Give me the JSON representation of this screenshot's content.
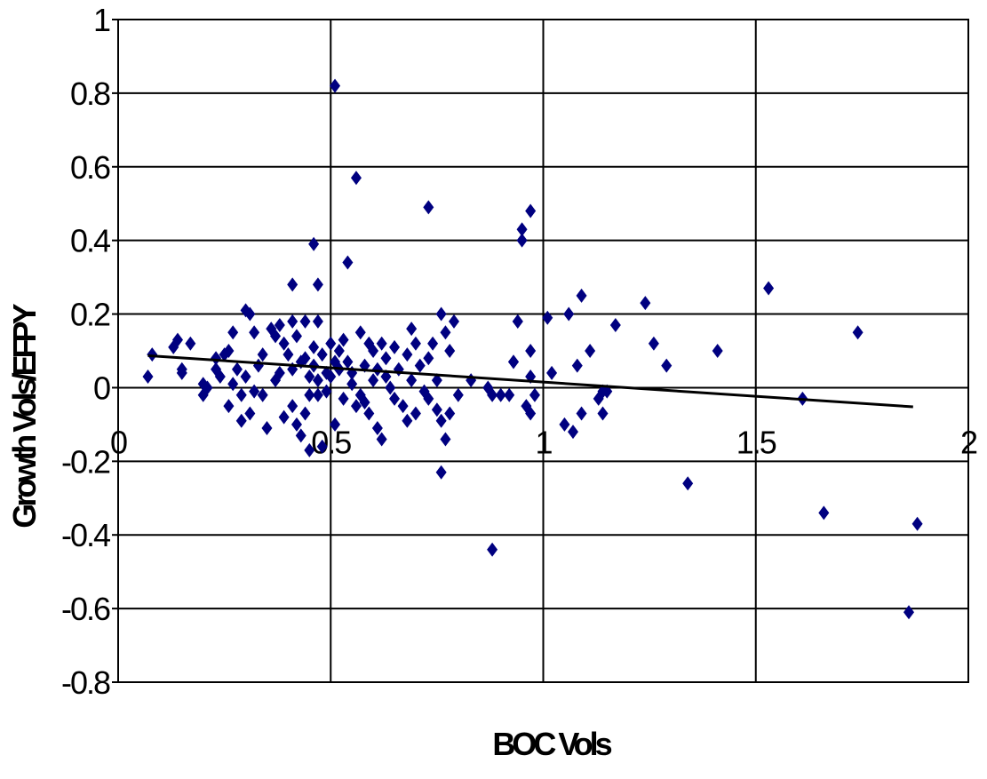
{
  "chart_data": {
    "type": "scatter",
    "x_label": "BOC Vols",
    "y_label": "Growth Vols/EFPY",
    "xlim": [
      0,
      2
    ],
    "xticks": [
      0,
      0.5,
      1,
      1.5,
      2
    ],
    "ylim": [
      -0.8,
      1
    ],
    "yticks": [
      1,
      0.8,
      0.6,
      0.4,
      0.2,
      0,
      -0.2,
      -0.4,
      -0.6,
      -0.8
    ],
    "grid": true,
    "series": [
      {
        "color": "#000080",
        "x": [
          0.51,
          0.56,
          0.73,
          0.97,
          0.95,
          0.95,
          0.46,
          0.54,
          0.41,
          0.47,
          1.53,
          1.09,
          1.24,
          1.74,
          1.41,
          1.61,
          1.34,
          1.66,
          1.88,
          1.86,
          0.88,
          0.76,
          1.29,
          1.26,
          1.17,
          1.06,
          1.01,
          0.94,
          1.11,
          1.08,
          1.02,
          1.09,
          1.07,
          1.05,
          1.14,
          1.13,
          1.15,
          1.14,
          0.97,
          0.97,
          0.93,
          0.96,
          0.98,
          0.97,
          0.07,
          0.08,
          0.13,
          0.14,
          0.15,
          0.15,
          0.17,
          0.2,
          0.2,
          0.21,
          0.23,
          0.23,
          0.24,
          0.25,
          0.26,
          0.26,
          0.27,
          0.27,
          0.28,
          0.29,
          0.29,
          0.3,
          0.3,
          0.31,
          0.31,
          0.32,
          0.32,
          0.33,
          0.34,
          0.34,
          0.35,
          0.36,
          0.37,
          0.37,
          0.38,
          0.38,
          0.39,
          0.39,
          0.4,
          0.41,
          0.41,
          0.41,
          0.42,
          0.42,
          0.43,
          0.43,
          0.44,
          0.44,
          0.44,
          0.45,
          0.45,
          0.45,
          0.46,
          0.46,
          0.47,
          0.47,
          0.47,
          0.48,
          0.48,
          0.49,
          0.49,
          0.5,
          0.5,
          0.51,
          0.51,
          0.52,
          0.52,
          0.53,
          0.53,
          0.54,
          0.55,
          0.55,
          0.56,
          0.57,
          0.57,
          0.58,
          0.58,
          0.59,
          0.59,
          0.6,
          0.6,
          0.61,
          0.61,
          0.62,
          0.62,
          0.63,
          0.63,
          0.64,
          0.65,
          0.65,
          0.66,
          0.67,
          0.68,
          0.68,
          0.69,
          0.69,
          0.7,
          0.7,
          0.71,
          0.72,
          0.73,
          0.73,
          0.74,
          0.75,
          0.75,
          0.76,
          0.76,
          0.77,
          0.77,
          0.78,
          0.78,
          0.79,
          0.8,
          0.83,
          0.87,
          0.88,
          0.9,
          0.92,
          0.93,
          0.94
        ],
        "y": [
          0.82,
          0.57,
          0.49,
          0.48,
          0.43,
          0.4,
          0.39,
          0.34,
          0.28,
          0.28,
          0.27,
          0.25,
          0.23,
          0.15,
          0.1,
          -0.03,
          -0.26,
          -0.34,
          -0.37,
          -0.61,
          -0.44,
          -0.23,
          0.06,
          0.12,
          0.17,
          0.2,
          0.19,
          0.18,
          0.1,
          0.06,
          0.04,
          -0.07,
          -0.12,
          -0.1,
          -0.01,
          -0.03,
          -0.01,
          -0.07,
          0.1,
          0.03,
          0.07,
          -0.05,
          -0.02,
          -0.07,
          0.03,
          0.09,
          0.11,
          0.13,
          0.05,
          0.04,
          0.12,
          0.01,
          -0.02,
          0.0,
          0.08,
          0.05,
          0.03,
          0.09,
          0.1,
          -0.05,
          0.15,
          0.01,
          0.05,
          -0.09,
          -0.02,
          0.21,
          0.03,
          0.2,
          -0.07,
          0.15,
          -0.01,
          0.06,
          -0.02,
          0.09,
          -0.11,
          0.16,
          0.14,
          0.02,
          0.17,
          0.04,
          0.12,
          -0.08,
          0.09,
          0.18,
          0.05,
          -0.05,
          0.14,
          -0.1,
          -0.13,
          0.07,
          0.18,
          0.08,
          -0.07,
          -0.02,
          0.03,
          -0.17,
          0.06,
          0.11,
          -0.02,
          0.18,
          0.02,
          -0.16,
          0.09,
          0.04,
          -0.01,
          0.12,
          0.03,
          0.07,
          -0.1,
          0.05,
          0.1,
          0.13,
          -0.03,
          0.07,
          0.01,
          0.04,
          -0.05,
          0.15,
          -0.02,
          0.06,
          -0.04,
          0.12,
          -0.07,
          0.1,
          0.02,
          -0.11,
          0.05,
          0.12,
          -0.14,
          0.03,
          0.08,
          0.0,
          0.11,
          -0.03,
          0.05,
          -0.05,
          0.09,
          -0.09,
          0.16,
          0.02,
          0.12,
          -0.07,
          0.06,
          -0.01,
          0.08,
          -0.03,
          0.12,
          -0.06,
          0.02,
          0.2,
          -0.09,
          0.15,
          -0.14,
          0.1,
          -0.07,
          0.18,
          -0.02,
          0.02,
          0.0,
          -0.02,
          -0.02,
          -0.02,
          0.07,
          0.18
        ]
      }
    ],
    "trendline": {
      "color": "#000000",
      "x": [
        0.07,
        1.87
      ],
      "y": [
        0.087,
        -0.052
      ]
    }
  }
}
